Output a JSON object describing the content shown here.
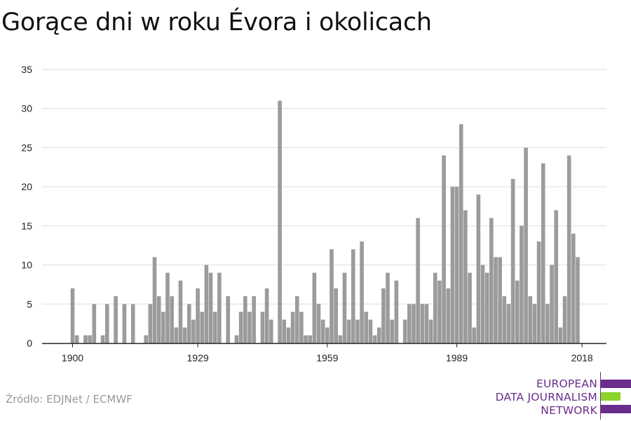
{
  "title": "Gorące dni w roku Évora i okolicach",
  "source": "Źródło: EDJNet / ECMWF",
  "logo": {
    "lines": [
      "EUROPEAN",
      "DATA JOURNALISM",
      "NETWORK"
    ],
    "colors": {
      "purple": "#6a2d8c",
      "green": "#8dd32c"
    }
  },
  "colors": {
    "bar": "#9b9b9b",
    "grid": "#dddddd",
    "axis": "#222222"
  },
  "chart_data": {
    "type": "bar",
    "x_start": 1900,
    "x_end": 2018,
    "ylim": [
      0,
      35
    ],
    "yticks": [
      0,
      5,
      10,
      15,
      20,
      25,
      30,
      35
    ],
    "xticks": [
      1900,
      1929,
      1959,
      1989,
      2018
    ],
    "grid": true,
    "x": [
      1900,
      1901,
      1902,
      1903,
      1904,
      1905,
      1906,
      1907,
      1908,
      1909,
      1910,
      1911,
      1912,
      1913,
      1914,
      1915,
      1916,
      1917,
      1918,
      1919,
      1920,
      1921,
      1922,
      1923,
      1924,
      1925,
      1926,
      1927,
      1928,
      1929,
      1930,
      1931,
      1932,
      1933,
      1934,
      1935,
      1936,
      1937,
      1938,
      1939,
      1940,
      1941,
      1942,
      1943,
      1944,
      1945,
      1946,
      1947,
      1948,
      1949,
      1950,
      1951,
      1952,
      1953,
      1954,
      1955,
      1956,
      1957,
      1958,
      1959,
      1960,
      1961,
      1962,
      1963,
      1964,
      1965,
      1966,
      1967,
      1968,
      1969,
      1970,
      1971,
      1972,
      1973,
      1974,
      1975,
      1976,
      1977,
      1978,
      1979,
      1980,
      1981,
      1982,
      1983,
      1984,
      1985,
      1986,
      1987,
      1988,
      1989,
      1990,
      1991,
      1992,
      1993,
      1994,
      1995,
      1996,
      1997,
      1998,
      1999,
      2000,
      2001,
      2002,
      2003,
      2004,
      2005,
      2006,
      2007,
      2008,
      2009,
      2010,
      2011,
      2012,
      2013,
      2014,
      2015,
      2016,
      2017,
      2018
    ],
    "values": [
      7,
      1,
      0,
      1,
      1,
      5,
      0,
      1,
      5,
      0,
      6,
      0,
      5,
      0,
      5,
      0,
      0,
      1,
      5,
      11,
      6,
      4,
      9,
      6,
      2,
      8,
      2,
      5,
      3,
      7,
      4,
      10,
      9,
      4,
      9,
      0,
      6,
      0,
      1,
      4,
      6,
      4,
      6,
      0,
      4,
      7,
      3,
      0,
      31,
      3,
      2,
      4,
      6,
      4,
      1,
      1,
      9,
      5,
      3,
      2,
      12,
      7,
      1,
      9,
      3,
      12,
      3,
      13,
      4,
      3,
      1,
      2,
      7,
      9,
      3,
      8,
      0,
      3,
      5,
      5,
      16,
      5,
      5,
      3,
      9,
      8,
      24,
      7,
      20,
      20,
      28,
      17,
      9,
      2,
      19,
      10,
      9,
      16,
      11,
      11,
      6,
      5,
      21,
      8,
      15,
      25,
      6,
      5,
      13,
      23,
      5,
      10,
      17,
      2,
      6,
      24,
      14,
      11,
      0
    ]
  }
}
